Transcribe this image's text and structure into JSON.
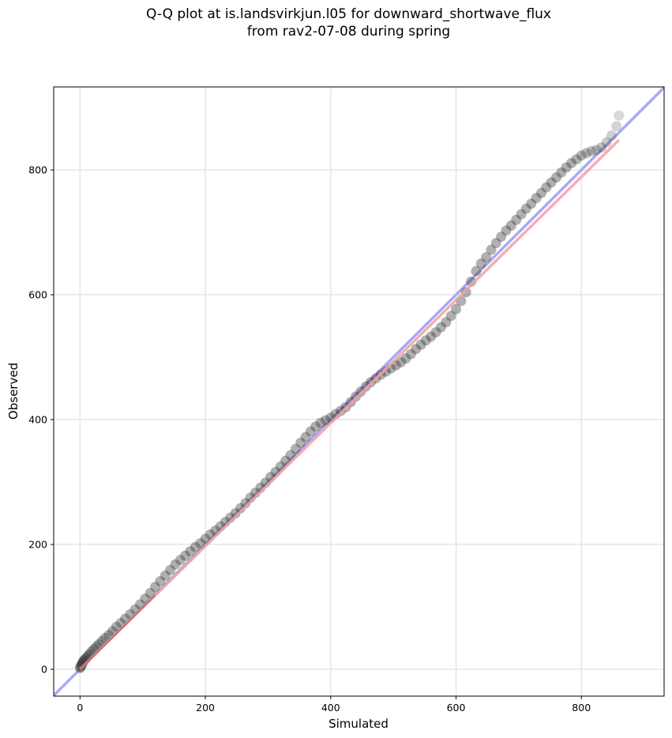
{
  "chart_data": {
    "type": "scatter",
    "title_line1": "Q-Q plot at is.landsvirkjun.l05 for downward_shortwave_flux",
    "title_line2": "from rav2-07-08 during spring",
    "xlabel": "Simulated",
    "ylabel": "Observed",
    "xlim": [
      -42,
      932
    ],
    "ylim": [
      -43,
      933
    ],
    "xticks": [
      0,
      200,
      400,
      600,
      800
    ],
    "yticks": [
      0,
      200,
      400,
      600,
      800
    ],
    "grid": true,
    "colors": {
      "points": "#3a3a3a",
      "identity_line": "#a9a9f5",
      "fit_line": "#f2a0a0",
      "fit_inner": "#9e1f1f"
    },
    "identity_line": {
      "x": [
        -42,
        932
      ],
      "y": [
        -42,
        932
      ]
    },
    "fit_line": {
      "x": [
        0,
        860
      ],
      "y": [
        0,
        848
      ]
    },
    "quantiles": {
      "x": [
        0,
        1,
        2,
        3,
        4,
        5,
        6,
        8,
        10,
        12,
        15,
        18,
        22,
        26,
        30,
        35,
        40,
        46,
        52,
        58,
        65,
        72,
        80,
        88,
        96,
        104,
        112,
        120,
        128,
        136,
        144,
        152,
        160,
        168,
        176,
        184,
        192,
        200,
        208,
        216,
        224,
        232,
        240,
        248,
        256,
        264,
        272,
        280,
        288,
        296,
        304,
        312,
        320,
        328,
        336,
        344,
        352,
        360,
        368,
        376,
        384,
        392,
        400,
        408,
        416,
        424,
        432,
        440,
        448,
        456,
        464,
        472,
        480,
        488,
        496,
        504,
        512,
        520,
        528,
        536,
        544,
        552,
        560,
        568,
        576,
        584,
        592,
        600,
        608,
        616,
        624,
        632,
        640,
        648,
        656,
        664,
        672,
        680,
        688,
        696,
        704,
        712,
        720,
        728,
        736,
        744,
        752,
        760,
        768,
        776,
        784,
        792,
        800,
        808,
        816,
        824,
        832,
        840,
        848,
        856,
        860
      ],
      "y": [
        2,
        4,
        6,
        8,
        10,
        12,
        14,
        16,
        18,
        21,
        24,
        28,
        32,
        36,
        40,
        45,
        50,
        55,
        61,
        68,
        74,
        81,
        88,
        96,
        104,
        113,
        122,
        132,
        141,
        150,
        159,
        168,
        175,
        182,
        189,
        196,
        202,
        209,
        216,
        222,
        229,
        236,
        243,
        250,
        258,
        266,
        275,
        283,
        291,
        299,
        308,
        316,
        325,
        334,
        343,
        353,
        363,
        372,
        381,
        389,
        395,
        399,
        403,
        409,
        414,
        420,
        428,
        437,
        445,
        453,
        460,
        466,
        472,
        477,
        482,
        487,
        492,
        498,
        505,
        513,
        520,
        527,
        533,
        540,
        548,
        556,
        566,
        577,
        590,
        604,
        621,
        638,
        650,
        660,
        672,
        683,
        693,
        703,
        711,
        720,
        729,
        738,
        746,
        755,
        763,
        772,
        780,
        788,
        796,
        804,
        811,
        817,
        823,
        827,
        830,
        832,
        836,
        844,
        855,
        870,
        887
      ]
    }
  }
}
